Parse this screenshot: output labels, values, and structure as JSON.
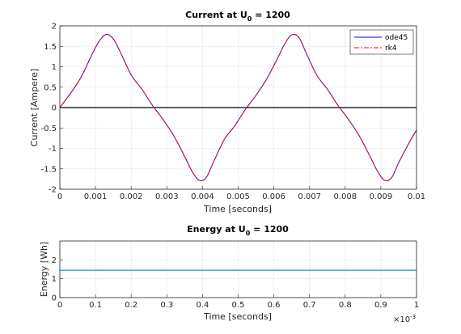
{
  "chart_data": [
    {
      "type": "line",
      "title": {
        "main": "Current at U",
        "sub": "0",
        "rest": " = 1200"
      },
      "xlabel": "Time [seconds]",
      "ylabel": "Current [Ampere]",
      "xlim": [
        0,
        0.01
      ],
      "ylim": [
        -2,
        2
      ],
      "xticks": [
        0,
        0.001,
        0.002,
        0.003,
        0.004,
        0.005,
        0.006,
        0.007,
        0.008,
        0.009,
        0.01
      ],
      "xtick_labels": [
        "0",
        "0.001",
        "0.002",
        "0.003",
        "0.004",
        "0.005",
        "0.006",
        "0.007",
        "0.008",
        "0.009",
        "0.01"
      ],
      "yticks": [
        -2,
        -1.5,
        -1,
        -0.5,
        0,
        0.5,
        1,
        1.5,
        2
      ],
      "ytick_labels": [
        "-2",
        "-1.5",
        "-1",
        "-0.5",
        "0",
        "0.5",
        "1",
        "1.5",
        "2"
      ],
      "grid": true,
      "legend_position": "top-right",
      "zero_line_color": "#000000",
      "series": [
        {
          "name": "ode45",
          "color": "#0000ff",
          "dash": "solid",
          "x": [
            0,
            0.0003,
            0.0006,
            0.0009,
            0.0011,
            0.0013,
            0.0015,
            0.0017,
            0.002,
            0.0023,
            0.0026,
            0.0029,
            0.0032,
            0.0035,
            0.0037,
            0.0039,
            0.0041,
            0.0043,
            0.0046,
            0.0049,
            0.0052,
            0.0055,
            0.0058,
            0.0061,
            0.0063,
            0.0065,
            0.0067,
            0.0069,
            0.0072,
            0.0075,
            0.0078,
            0.0081,
            0.0084,
            0.0087,
            0.0089,
            0.0091,
            0.0093,
            0.0095,
            0.0098,
            0.01
          ],
          "y": [
            0,
            0.35,
            0.75,
            1.3,
            1.62,
            1.79,
            1.68,
            1.35,
            0.8,
            0.45,
            0.05,
            -0.3,
            -0.7,
            -1.2,
            -1.55,
            -1.78,
            -1.72,
            -1.35,
            -0.8,
            -0.45,
            -0.05,
            0.3,
            0.7,
            1.2,
            1.55,
            1.78,
            1.72,
            1.35,
            0.8,
            0.45,
            0.05,
            -0.3,
            -0.7,
            -1.2,
            -1.55,
            -1.78,
            -1.72,
            -1.35,
            -0.85,
            -0.55
          ]
        },
        {
          "name": "rk4",
          "color": "#ff0000",
          "dash": "6,2,2,2",
          "x": [
            0,
            0.0003,
            0.0006,
            0.0009,
            0.0011,
            0.0013,
            0.0015,
            0.0017,
            0.002,
            0.0023,
            0.0026,
            0.0029,
            0.0032,
            0.0035,
            0.0037,
            0.0039,
            0.0041,
            0.0043,
            0.0046,
            0.0049,
            0.0052,
            0.0055,
            0.0058,
            0.0061,
            0.0063,
            0.0065,
            0.0067,
            0.0069,
            0.0072,
            0.0075,
            0.0078,
            0.0081,
            0.0084,
            0.0087,
            0.0089,
            0.0091,
            0.0093,
            0.0095,
            0.0098,
            0.01
          ],
          "y": [
            0,
            0.35,
            0.75,
            1.3,
            1.62,
            1.79,
            1.68,
            1.35,
            0.8,
            0.45,
            0.05,
            -0.3,
            -0.7,
            -1.2,
            -1.55,
            -1.78,
            -1.72,
            -1.35,
            -0.8,
            -0.45,
            -0.05,
            0.3,
            0.7,
            1.2,
            1.55,
            1.78,
            1.72,
            1.35,
            0.8,
            0.45,
            0.05,
            -0.3,
            -0.7,
            -1.2,
            -1.55,
            -1.78,
            -1.72,
            -1.35,
            -0.85,
            -0.55
          ]
        }
      ]
    },
    {
      "type": "line",
      "title": {
        "main": "Energy at U",
        "sub": "0",
        "rest": " = 1200"
      },
      "xlabel": "Time [seconds]",
      "ylabel": "Energy [Wh]",
      "xlim": [
        0,
        1
      ],
      "ylim": [
        0,
        3
      ],
      "xticks": [
        0,
        0.1,
        0.2,
        0.3,
        0.4,
        0.5,
        0.6,
        0.7,
        0.8,
        0.9,
        1
      ],
      "xtick_labels": [
        "0",
        "0.1",
        "0.2",
        "0.3",
        "0.4",
        "0.5",
        "0.6",
        "0.7",
        "0.8",
        "0.9",
        "1"
      ],
      "x_exponent": {
        "base": "×10",
        "exp": "-3"
      },
      "yticks": [
        0,
        1,
        2
      ],
      "ytick_labels": [
        "0",
        "1",
        "2"
      ],
      "grid": true,
      "series": [
        {
          "color": "#4daed6",
          "dash": "solid",
          "x": [
            0,
            1
          ],
          "y": [
            1.45,
            1.45
          ]
        }
      ]
    }
  ]
}
